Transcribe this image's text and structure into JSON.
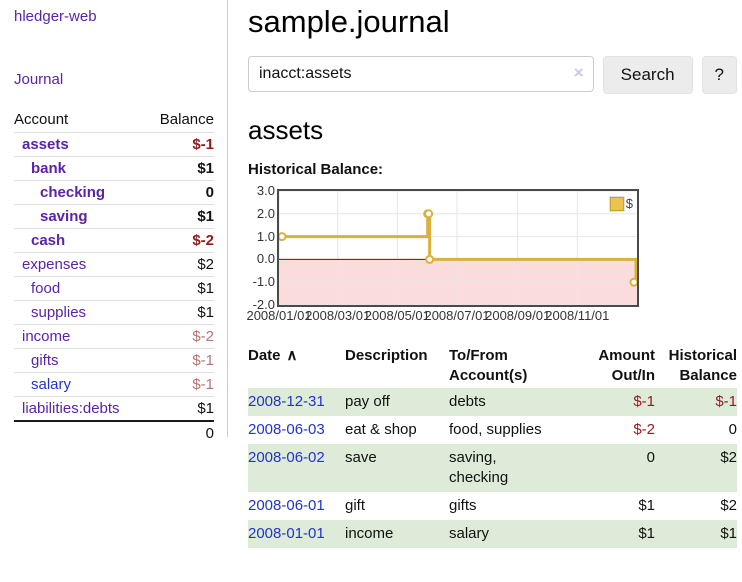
{
  "sidebar": {
    "app_title": "hledger-web",
    "journal_link": "Journal",
    "account_header": "Account",
    "balance_header": "Balance",
    "accounts": [
      {
        "name": "assets",
        "balance": "$-1"
      },
      {
        "name": "bank",
        "balance": "$1"
      },
      {
        "name": "checking",
        "balance": "0"
      },
      {
        "name": "saving",
        "balance": "$1"
      },
      {
        "name": "cash",
        "balance": "$-2"
      },
      {
        "name": "expenses",
        "balance": "$2"
      },
      {
        "name": "food",
        "balance": "$1"
      },
      {
        "name": "supplies",
        "balance": "$1"
      },
      {
        "name": "income",
        "balance": "$-2"
      },
      {
        "name": "gifts",
        "balance": "$-1"
      },
      {
        "name": "salary",
        "balance": "$-1"
      },
      {
        "name": "liabilities:debts",
        "balance": "$1"
      }
    ],
    "total": "0"
  },
  "header": {
    "title": "sample.journal"
  },
  "search": {
    "value": "inacct:assets",
    "clear_icon": "×",
    "button_label": "Search",
    "help_label": "?"
  },
  "account_page": {
    "heading": "assets",
    "chart_title": "Historical Balance:"
  },
  "chart_data": {
    "type": "line",
    "step": true,
    "title": "Historical Balance:",
    "series": [
      {
        "name": "$",
        "points": [
          [
            "2008-01-01",
            1
          ],
          [
            "2008-06-01",
            2
          ],
          [
            "2008-06-02",
            2
          ],
          [
            "2008-06-03",
            0
          ],
          [
            "2008-12-31",
            -1
          ]
        ]
      }
    ],
    "x_range": [
      "2008-01-01",
      "2009-01-01"
    ],
    "y_range": [
      -2,
      3
    ],
    "x_ticks": [
      {
        "date": "2008-01-01",
        "label": "2008/01/01"
      },
      {
        "date": "2008-03-01",
        "label": "2008/03/01"
      },
      {
        "date": "2008-05-01",
        "label": "2008/05/01"
      },
      {
        "date": "2008-07-01",
        "label": "2008/07/01"
      },
      {
        "date": "2008-09-01",
        "label": "2008/09/01"
      },
      {
        "date": "2008-11-01",
        "label": "2008/11/01"
      }
    ],
    "y_ticks": [
      {
        "value": 3,
        "label": "3.0"
      },
      {
        "value": 2,
        "label": "2.0"
      },
      {
        "value": 1,
        "label": "1.0"
      },
      {
        "value": 0,
        "label": "0.0"
      },
      {
        "value": -1,
        "label": "-1.0"
      },
      {
        "value": -2,
        "label": "-2.0"
      }
    ],
    "legend": {
      "label": "$",
      "position": "top-right"
    },
    "grid": true,
    "colors": {
      "line": "#d9b13c",
      "marker_fill": "#ffffff",
      "negative_fill": "#fbdcdc",
      "zero_line": "#8b0000",
      "grid": "#e6e6e6"
    }
  },
  "table": {
    "headers": {
      "date": "Date",
      "sort_indicator": "∧",
      "description": "Description",
      "accounts": "To/From Account(s)",
      "amount": "Amount Out/In",
      "balance": "Historical Balance"
    },
    "rows": [
      {
        "date": "2008-12-31",
        "description": "pay off",
        "accounts": "debts",
        "amount": "$-1",
        "balance": "$-1"
      },
      {
        "date": "2008-06-03",
        "description": "eat & shop",
        "accounts": "food, supplies",
        "amount": "$-2",
        "balance": "0"
      },
      {
        "date": "2008-06-02",
        "description": "save",
        "accounts": "saving,\nchecking",
        "amount": "0",
        "balance": "$2"
      },
      {
        "date": "2008-06-01",
        "description": "gift",
        "accounts": "gifts",
        "amount": "$1",
        "balance": "$2"
      },
      {
        "date": "2008-01-01",
        "description": "income",
        "accounts": "salary",
        "amount": "$1",
        "balance": "$1"
      }
    ]
  }
}
